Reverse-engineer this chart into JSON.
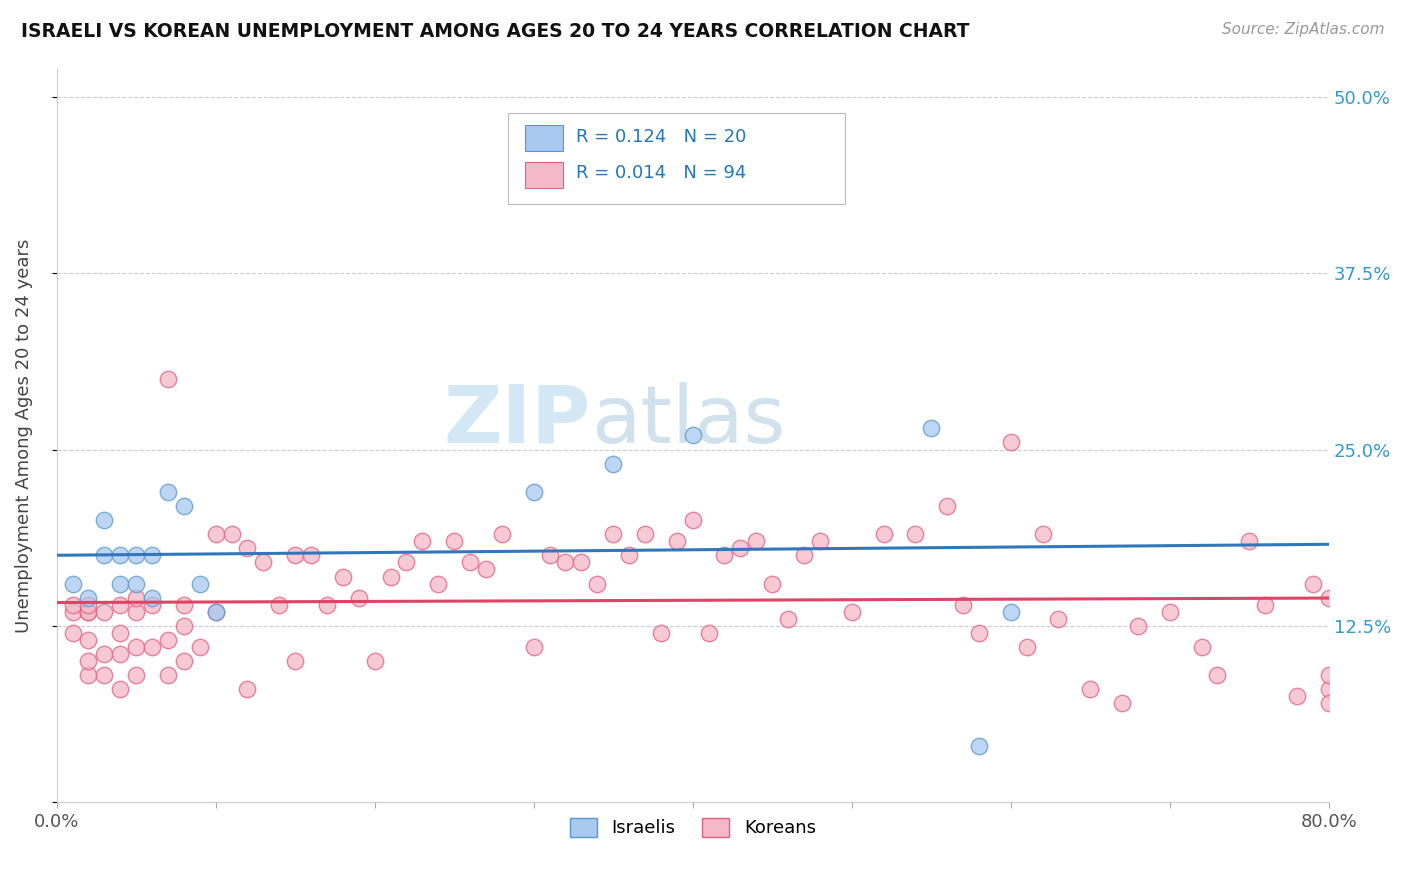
{
  "title": "ISRAELI VS KOREAN UNEMPLOYMENT AMONG AGES 20 TO 24 YEARS CORRELATION CHART",
  "source": "Source: ZipAtlas.com",
  "ylabel": "Unemployment Among Ages 20 to 24 years",
  "xlim": [
    0.0,
    0.8
  ],
  "ylim": [
    0.0,
    0.52
  ],
  "yticks": [
    0.0,
    0.125,
    0.25,
    0.375,
    0.5
  ],
  "ytick_labels": [
    "",
    "12.5%",
    "25.0%",
    "37.5%",
    "50.0%"
  ],
  "xtick_labels": [
    "0.0%",
    "80.0%"
  ],
  "xtick_positions": [
    0.0,
    0.8
  ],
  "israeli_color": "#a8c8f0",
  "korean_color": "#f5b8c8",
  "israeli_edge_color": "#5599cc",
  "korean_edge_color": "#e06080",
  "israeli_line_color": "#3377bb",
  "korean_line_color": "#dd4466",
  "watermark_zip": "ZIP",
  "watermark_atlas": "atlas",
  "background_color": "#ffffff",
  "israeli_x": [
    0.01,
    0.02,
    0.03,
    0.03,
    0.04,
    0.04,
    0.05,
    0.05,
    0.06,
    0.06,
    0.07,
    0.08,
    0.09,
    0.1,
    0.3,
    0.35,
    0.4,
    0.55,
    0.58,
    0.6
  ],
  "israeli_y": [
    0.155,
    0.145,
    0.175,
    0.2,
    0.155,
    0.175,
    0.155,
    0.175,
    0.145,
    0.175,
    0.22,
    0.21,
    0.155,
    0.135,
    0.22,
    0.24,
    0.26,
    0.265,
    0.04,
    0.135
  ],
  "korean_x": [
    0.01,
    0.01,
    0.01,
    0.02,
    0.02,
    0.02,
    0.02,
    0.02,
    0.02,
    0.03,
    0.03,
    0.03,
    0.04,
    0.04,
    0.04,
    0.04,
    0.05,
    0.05,
    0.05,
    0.05,
    0.06,
    0.06,
    0.07,
    0.07,
    0.07,
    0.08,
    0.08,
    0.08,
    0.09,
    0.1,
    0.1,
    0.11,
    0.12,
    0.12,
    0.13,
    0.14,
    0.15,
    0.15,
    0.16,
    0.17,
    0.18,
    0.19,
    0.2,
    0.21,
    0.22,
    0.23,
    0.24,
    0.25,
    0.26,
    0.27,
    0.28,
    0.3,
    0.31,
    0.32,
    0.33,
    0.34,
    0.35,
    0.36,
    0.37,
    0.38,
    0.39,
    0.4,
    0.41,
    0.42,
    0.43,
    0.44,
    0.45,
    0.46,
    0.47,
    0.48,
    0.5,
    0.52,
    0.54,
    0.56,
    0.57,
    0.58,
    0.6,
    0.61,
    0.62,
    0.63,
    0.65,
    0.67,
    0.68,
    0.7,
    0.72,
    0.73,
    0.75,
    0.76,
    0.78,
    0.79,
    0.8,
    0.8,
    0.8,
    0.8
  ],
  "korean_y": [
    0.135,
    0.14,
    0.12,
    0.09,
    0.1,
    0.115,
    0.135,
    0.135,
    0.14,
    0.09,
    0.105,
    0.135,
    0.08,
    0.105,
    0.12,
    0.14,
    0.09,
    0.11,
    0.135,
    0.145,
    0.11,
    0.14,
    0.09,
    0.115,
    0.3,
    0.1,
    0.125,
    0.14,
    0.11,
    0.135,
    0.19,
    0.19,
    0.08,
    0.18,
    0.17,
    0.14,
    0.1,
    0.175,
    0.175,
    0.14,
    0.16,
    0.145,
    0.1,
    0.16,
    0.17,
    0.185,
    0.155,
    0.185,
    0.17,
    0.165,
    0.19,
    0.11,
    0.175,
    0.17,
    0.17,
    0.155,
    0.19,
    0.175,
    0.19,
    0.12,
    0.185,
    0.2,
    0.12,
    0.175,
    0.18,
    0.185,
    0.155,
    0.13,
    0.175,
    0.185,
    0.135,
    0.19,
    0.19,
    0.21,
    0.14,
    0.12,
    0.255,
    0.11,
    0.19,
    0.13,
    0.08,
    0.07,
    0.125,
    0.135,
    0.11,
    0.09,
    0.185,
    0.14,
    0.075,
    0.155,
    0.08,
    0.09,
    0.07,
    0.145
  ]
}
